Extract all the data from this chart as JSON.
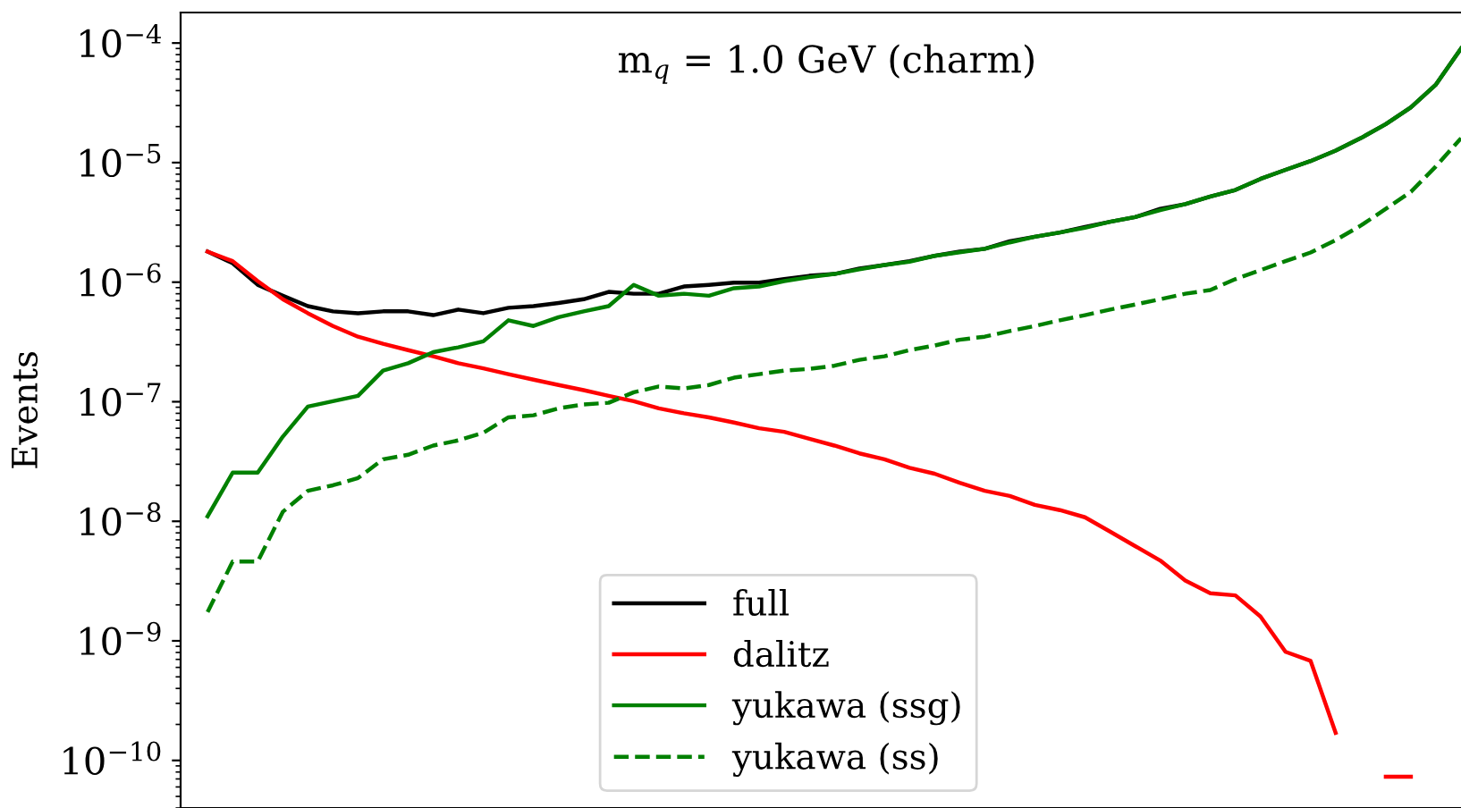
{
  "chart_data": {
    "type": "line",
    "categories": [
      null,
      null,
      null,
      null,
      null,
      null,
      null,
      null,
      null,
      null,
      null,
      null,
      null,
      null,
      null,
      null,
      null,
      null,
      null,
      null,
      null,
      null,
      null,
      null,
      null,
      null,
      null,
      null,
      null,
      null,
      null,
      null,
      null,
      null,
      null,
      null,
      null,
      null,
      null,
      null,
      null,
      null,
      null,
      null,
      null,
      null,
      null,
      null,
      null,
      null,
      null
    ],
    "ylabel": "Events",
    "annotations": [
      "m$_{q}$ = 1.0 GeV (charm)"
    ],
    "log": "y",
    "ylim": [
      4e-11,
      0.00018
    ],
    "yticks": [
      {
        "value": 1e-10,
        "label": "10$^{−10}$"
      },
      {
        "value": 1e-09,
        "label": "10$^{−9}$"
      },
      {
        "value": 1e-08,
        "label": "10$^{−8}$"
      },
      {
        "value": 1e-07,
        "label": "10$^{−7}$"
      },
      {
        "value": 1e-06,
        "label": "10$^{−6}$"
      },
      {
        "value": 1e-05,
        "label": "10$^{−5}$"
      },
      {
        "value": 0.0001,
        "label": "10$^{−4}$"
      }
    ],
    "tick_labels": "y",
    "grid": false,
    "legend": "bottom",
    "marker": "none",
    "series": [
      {
        "name": "full",
        "color": "#000000",
        "line_style": "solid",
        "values": [
          1.8e-06,
          1.44e-06,
          9.5e-07,
          7.7e-07,
          6.3e-07,
          5.7e-07,
          5.5e-07,
          5.7e-07,
          5.7e-07,
          5.3e-07,
          5.9e-07,
          5.5e-07,
          6.1e-07,
          6.3e-07,
          6.7e-07,
          7.2e-07,
          8.3e-07,
          8e-07,
          8e-07,
          9.2e-07,
          9.5e-07,
          9.9e-07,
          9.9e-07,
          1.06e-06,
          1.13e-06,
          1.17e-06,
          1.3e-06,
          1.39e-06,
          1.5e-06,
          1.66e-06,
          1.8e-06,
          1.9e-06,
          2.2e-06,
          2.4e-06,
          2.6e-06,
          2.9e-06,
          3.2e-06,
          3.5e-06,
          4.1e-06,
          4.5e-06,
          5.2e-06,
          5.9e-06,
          7.3e-06,
          8.7e-06,
          1.03e-05,
          1.26e-05,
          1.6e-05,
          2.1e-05,
          2.9e-05,
          4.5e-05,
          9e-05
        ]
      },
      {
        "name": "dalitz",
        "color": "#ff0000",
        "line_style": "solid",
        "values": [
          1.8e-06,
          1.5e-06,
          1.02e-06,
          7.2e-07,
          5.5e-07,
          4.3e-07,
          3.5e-07,
          3.05e-07,
          2.7e-07,
          2.4e-07,
          2.1e-07,
          1.9e-07,
          1.7e-07,
          1.53e-07,
          1.38e-07,
          1.25e-07,
          1.12e-07,
          1.01e-07,
          8.8e-08,
          8e-08,
          7.4e-08,
          6.7e-08,
          6e-08,
          5.6e-08,
          4.9e-08,
          4.3e-08,
          3.7e-08,
          3.3e-08,
          2.8e-08,
          2.5e-08,
          2.1e-08,
          1.8e-08,
          1.63e-08,
          1.37e-08,
          1.24e-08,
          1.08e-08,
          8.2e-09,
          6.2e-09,
          4.7e-09,
          3.2e-09,
          2.5e-09,
          2.4e-09,
          1.6e-09,
          8.1e-10,
          6.8e-10,
          1.7e-10,
          null,
          7.3e-11,
          7.3e-11,
          null,
          null
        ]
      },
      {
        "name": "yukawa (ssg)",
        "color": "#008000",
        "line_style": "solid",
        "values": [
          1.1e-08,
          2.55e-08,
          2.55e-08,
          5.1e-08,
          9.1e-08,
          1.01e-07,
          1.12e-07,
          1.82e-07,
          2.1e-07,
          2.6e-07,
          2.85e-07,
          3.2e-07,
          4.8e-07,
          4.3e-07,
          5.1e-07,
          5.7e-07,
          6.3e-07,
          9.5e-07,
          7.7e-07,
          8e-07,
          7.7e-07,
          8.9e-07,
          9.2e-07,
          1.02e-06,
          1.1e-06,
          1.17e-06,
          1.28e-06,
          1.39e-06,
          1.48e-06,
          1.66e-06,
          1.78e-06,
          1.9e-06,
          2.15e-06,
          2.4e-06,
          2.6e-06,
          2.85e-06,
          3.2e-06,
          3.5e-06,
          4e-06,
          4.5e-06,
          5.2e-06,
          5.9e-06,
          7.3e-06,
          8.7e-06,
          1.03e-05,
          1.26e-05,
          1.6e-05,
          2.1e-05,
          2.9e-05,
          4.5e-05,
          9e-05
        ]
      },
      {
        "name": "yukawa (ss)",
        "color": "#008000",
        "line_style": "dashed",
        "values": [
          1.74e-09,
          4.6e-09,
          4.6e-09,
          1.2e-08,
          1.8e-08,
          2e-08,
          2.3e-08,
          3.3e-08,
          3.6e-08,
          4.3e-08,
          4.75e-08,
          5.5e-08,
          7.4e-08,
          7.7e-08,
          8.8e-08,
          9.5e-08,
          9.8e-08,
          1.2e-07,
          1.34e-07,
          1.29e-07,
          1.38e-07,
          1.59e-07,
          1.7e-07,
          1.82e-07,
          1.88e-07,
          2e-07,
          2.24e-07,
          2.4e-07,
          2.7e-07,
          2.95e-07,
          3.3e-07,
          3.5e-07,
          3.9e-07,
          4.3e-07,
          4.8e-07,
          5.3e-07,
          5.9e-07,
          6.5e-07,
          7.2e-07,
          8e-07,
          8.6e-07,
          1.06e-06,
          1.26e-06,
          1.5e-06,
          1.77e-06,
          2.25e-06,
          2.97e-06,
          4.1e-06,
          5.7e-06,
          9.3e-06,
          1.6e-05
        ]
      }
    ]
  }
}
